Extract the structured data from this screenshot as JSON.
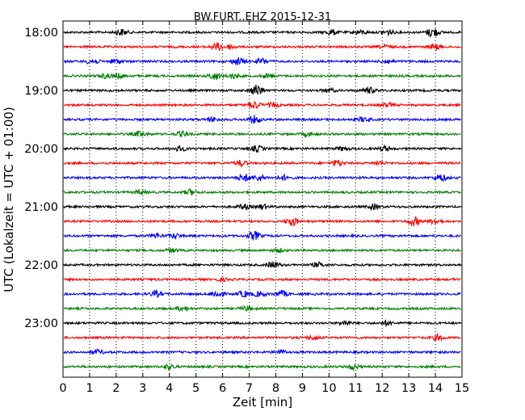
{
  "chart_data": {
    "type": "line",
    "title": "BW.FURT..EHZ 2015-12-31",
    "xlabel": "Zeit  [min]",
    "ylabel": "UTC (Lokalzeit = UTC + 01:00)",
    "xlim": [
      0,
      15
    ],
    "x_ticks": [
      "0",
      "1",
      "2",
      "3",
      "4",
      "5",
      "6",
      "7",
      "8",
      "9",
      "10",
      "11",
      "12",
      "13",
      "14",
      "15"
    ],
    "y_tick_labels": [
      "18:00",
      "19:00",
      "20:00",
      "21:00",
      "22:00",
      "23:00"
    ],
    "grid": "vertical dotted at each minute",
    "color_cycle": [
      "#000000",
      "#ff0000",
      "#0000ff",
      "#008000"
    ],
    "traces": [
      {
        "start": "18:00",
        "color": "#000000",
        "events": [
          [
            2.2,
            0.5
          ],
          [
            10.1,
            0.45
          ],
          [
            11.2,
            0.35
          ],
          [
            12.2,
            0.4
          ],
          [
            13.9,
            0.8
          ]
        ]
      },
      {
        "start": "18:15",
        "color": "#ff0000",
        "events": [
          [
            5.8,
            0.6
          ],
          [
            6.3,
            0.35
          ],
          [
            12.1,
            0.3
          ],
          [
            14.0,
            0.45
          ]
        ]
      },
      {
        "start": "18:30",
        "color": "#0000ff",
        "events": [
          [
            1.1,
            0.45
          ],
          [
            2.0,
            0.4
          ],
          [
            6.6,
            0.6
          ],
          [
            7.5,
            0.45
          ],
          [
            12.2,
            0.3
          ]
        ]
      },
      {
        "start": "18:45",
        "color": "#008000",
        "events": [
          [
            1.6,
            0.35
          ],
          [
            2.1,
            0.35
          ],
          [
            5.7,
            0.65
          ],
          [
            6.4,
            0.4
          ],
          [
            7.7,
            0.35
          ]
        ]
      },
      {
        "start": "19:00",
        "color": "#000000",
        "events": [
          [
            7.3,
            1.0
          ],
          [
            10.0,
            0.3
          ],
          [
            11.5,
            0.5
          ]
        ]
      },
      {
        "start": "19:15",
        "color": "#ff0000",
        "events": [
          [
            7.2,
            0.6
          ],
          [
            7.9,
            0.35
          ],
          [
            12.2,
            0.3
          ]
        ]
      },
      {
        "start": "19:30",
        "color": "#0000ff",
        "events": [
          [
            5.6,
            0.35
          ],
          [
            7.2,
            0.65
          ],
          [
            11.3,
            0.35
          ]
        ]
      },
      {
        "start": "19:45",
        "color": "#008000",
        "events": [
          [
            2.9,
            0.45
          ],
          [
            4.5,
            0.4
          ],
          [
            9.2,
            0.3
          ]
        ]
      },
      {
        "start": "20:00",
        "color": "#000000",
        "events": [
          [
            4.4,
            0.4
          ],
          [
            7.3,
            0.45
          ],
          [
            10.5,
            0.3
          ],
          [
            12.1,
            0.4
          ]
        ]
      },
      {
        "start": "20:15",
        "color": "#ff0000",
        "events": [
          [
            6.7,
            0.45
          ],
          [
            10.3,
            0.5
          ],
          [
            11.9,
            0.35
          ]
        ]
      },
      {
        "start": "20:30",
        "color": "#0000ff",
        "events": [
          [
            6.8,
            0.6
          ],
          [
            7.4,
            0.5
          ],
          [
            8.3,
            0.4
          ],
          [
            14.2,
            0.55
          ]
        ]
      },
      {
        "start": "20:45",
        "color": "#008000",
        "events": [
          [
            4.8,
            0.45
          ],
          [
            2.9,
            0.3
          ]
        ]
      },
      {
        "start": "21:00",
        "color": "#000000",
        "events": [
          [
            6.8,
            0.4
          ],
          [
            7.5,
            0.35
          ],
          [
            11.7,
            0.35
          ]
        ]
      },
      {
        "start": "21:15",
        "color": "#ff0000",
        "events": [
          [
            8.6,
            0.75
          ],
          [
            13.2,
            0.7
          ],
          [
            14.0,
            0.45
          ]
        ]
      },
      {
        "start": "21:30",
        "color": "#0000ff",
        "events": [
          [
            3.5,
            0.35
          ],
          [
            4.2,
            0.35
          ],
          [
            7.2,
            0.7
          ]
        ]
      },
      {
        "start": "21:45",
        "color": "#008000",
        "events": [
          [
            4.1,
            0.3
          ],
          [
            8.1,
            0.3
          ]
        ]
      },
      {
        "start": "22:00",
        "color": "#000000",
        "events": [
          [
            7.9,
            0.55
          ],
          [
            9.6,
            0.35
          ]
        ]
      },
      {
        "start": "22:15",
        "color": "#ff0000",
        "events": [
          [
            6.0,
            0.2
          ]
        ]
      },
      {
        "start": "22:30",
        "color": "#0000ff",
        "events": [
          [
            3.5,
            0.45
          ],
          [
            5.8,
            0.6
          ],
          [
            6.8,
            0.5
          ],
          [
            7.4,
            0.4
          ],
          [
            8.2,
            0.5
          ]
        ]
      },
      {
        "start": "22:45",
        "color": "#008000",
        "events": [
          [
            4.5,
            0.35
          ],
          [
            6.9,
            0.35
          ]
        ]
      },
      {
        "start": "23:00",
        "color": "#000000",
        "events": [
          [
            10.6,
            0.35
          ],
          [
            12.2,
            0.35
          ]
        ]
      },
      {
        "start": "23:15",
        "color": "#ff0000",
        "events": [
          [
            14.1,
            0.45
          ],
          [
            9.4,
            0.3
          ]
        ]
      },
      {
        "start": "23:30",
        "color": "#0000ff",
        "events": [
          [
            1.3,
            0.35
          ],
          [
            8.2,
            0.3
          ]
        ]
      },
      {
        "start": "23:45",
        "color": "#008000",
        "events": [
          [
            4.0,
            0.4
          ],
          [
            10.9,
            0.4
          ]
        ]
      }
    ]
  }
}
